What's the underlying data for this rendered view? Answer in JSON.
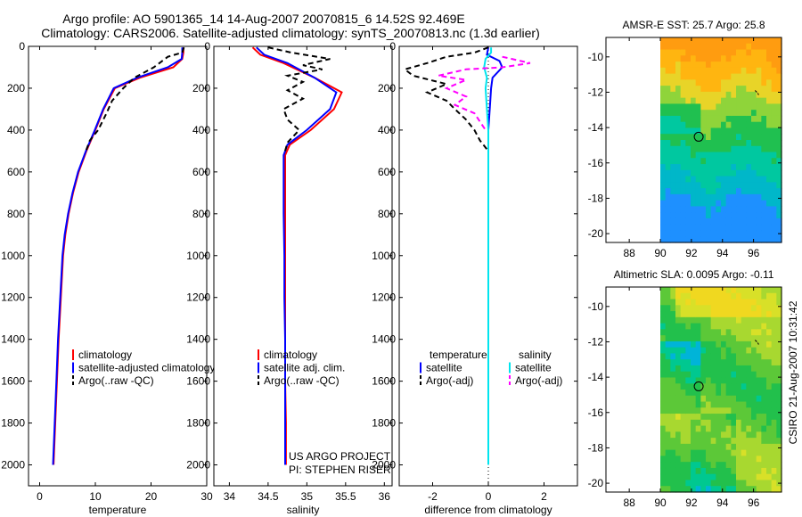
{
  "title_line1": "Argo profile: AO 5901365_14 14-Aug-2007 20070815_6 14.52S 92.469E",
  "title_line2": "Climatology: CARS2006. Satellite-adjusted climatology: synTS_20070813.nc (1.3d earlier)",
  "side_label": "CSIRO 21-Aug-2007 10:31:42",
  "chart_data": [
    {
      "id": "temperature",
      "type": "line",
      "xlabel": "temperature",
      "ylabel": "",
      "xlim": [
        -2,
        30
      ],
      "ylim": [
        2100,
        0
      ],
      "xticks": [
        0,
        10,
        20,
        30
      ],
      "yticks": [
        0,
        200,
        400,
        600,
        800,
        1000,
        1200,
        1400,
        1600,
        1800,
        2000
      ],
      "legend": [
        "climatology",
        "satellite-adjusted climatology",
        "Argo(..raw -QC)"
      ],
      "series": [
        {
          "name": "climatology",
          "color": "#ff0000",
          "dash": "",
          "points": [
            [
              25.8,
              5
            ],
            [
              25.8,
              30
            ],
            [
              25.6,
              60
            ],
            [
              24,
              100
            ],
            [
              18,
              150
            ],
            [
              13.5,
              200
            ],
            [
              11.5,
              300
            ],
            [
              10,
              400
            ],
            [
              8.4,
              500
            ],
            [
              7,
              600
            ],
            [
              6,
              700
            ],
            [
              5.2,
              800
            ],
            [
              4.6,
              900
            ],
            [
              4.2,
              1000
            ],
            [
              3.8,
              1200
            ],
            [
              3.4,
              1400
            ],
            [
              3.1,
              1600
            ],
            [
              2.8,
              1800
            ],
            [
              2.5,
              2000
            ]
          ]
        },
        {
          "name": "satellite-adjusted climatology",
          "color": "#0000ff",
          "dash": "",
          "points": [
            [
              25.6,
              5
            ],
            [
              25.6,
              30
            ],
            [
              25.5,
              60
            ],
            [
              23,
              100
            ],
            [
              17.5,
              150
            ],
            [
              13.3,
              200
            ],
            [
              11.4,
              300
            ],
            [
              9.9,
              400
            ],
            [
              8.3,
              500
            ],
            [
              6.9,
              600
            ],
            [
              5.9,
              700
            ],
            [
              5.1,
              800
            ],
            [
              4.5,
              900
            ],
            [
              4.1,
              1000
            ],
            [
              3.7,
              1200
            ],
            [
              3.3,
              1400
            ],
            [
              3,
              1600
            ],
            [
              2.7,
              1800
            ],
            [
              2.4,
              2000
            ]
          ]
        },
        {
          "name": "Argo(..raw -QC)",
          "color": "#000000",
          "dash": "6,4",
          "points": [
            [
              25.9,
              5
            ],
            [
              25.6,
              30
            ],
            [
              23,
              50
            ],
            [
              20.5,
              100
            ],
            [
              17,
              150
            ],
            [
              15,
              200
            ],
            [
              13,
              260
            ],
            [
              12,
              320
            ],
            [
              10.5,
              400
            ],
            [
              9,
              450
            ],
            [
              8.3,
              500
            ]
          ]
        }
      ]
    },
    {
      "id": "salinity",
      "type": "line",
      "xlabel": "salinity",
      "ylabel": "",
      "xlim": [
        33.8,
        36.1
      ],
      "ylim": [
        2100,
        0
      ],
      "xticks": [
        34,
        34.5,
        35,
        35.5,
        36
      ],
      "yticks": [
        0,
        200,
        400,
        600,
        800,
        1000,
        1200,
        1400,
        1600,
        1800,
        2000
      ],
      "legend": [
        "climatology",
        "satellite adj. clim.",
        "Argo(..raw -QC)"
      ],
      "annotations": [
        "US ARGO PROJECT",
        "PI: STEPHEN RISER"
      ],
      "series": [
        {
          "name": "climatology",
          "color": "#ff0000",
          "dash": "",
          "points": [
            [
              34.3,
              5
            ],
            [
              34.4,
              40
            ],
            [
              34.7,
              80
            ],
            [
              35.1,
              150
            ],
            [
              35.45,
              220
            ],
            [
              35.35,
              300
            ],
            [
              35.05,
              400
            ],
            [
              34.78,
              470
            ],
            [
              34.72,
              520
            ],
            [
              34.72,
              600
            ],
            [
              34.72,
              800
            ],
            [
              34.72,
              1000
            ],
            [
              34.72,
              1200
            ],
            [
              34.72,
              1400
            ],
            [
              34.72,
              1600
            ],
            [
              34.73,
              1800
            ],
            [
              34.73,
              2000
            ]
          ]
        },
        {
          "name": "satellite adj. clim.",
          "color": "#0000ff",
          "dash": "",
          "points": [
            [
              34.35,
              5
            ],
            [
              34.45,
              40
            ],
            [
              34.75,
              80
            ],
            [
              35.1,
              150
            ],
            [
              35.38,
              220
            ],
            [
              35.3,
              300
            ],
            [
              35.0,
              400
            ],
            [
              34.75,
              470
            ],
            [
              34.7,
              520
            ],
            [
              34.7,
              600
            ],
            [
              34.7,
              800
            ],
            [
              34.71,
              1000
            ],
            [
              34.71,
              1200
            ],
            [
              34.72,
              1400
            ],
            [
              34.72,
              1600
            ],
            [
              34.72,
              1800
            ],
            [
              34.72,
              2000
            ]
          ]
        },
        {
          "name": "Argo(..raw -QC)",
          "color": "#000000",
          "dash": "6,4",
          "points": [
            [
              34.5,
              5
            ],
            [
              34.8,
              30
            ],
            [
              35.3,
              60
            ],
            [
              34.95,
              90
            ],
            [
              35.2,
              110
            ],
            [
              34.75,
              140
            ],
            [
              34.95,
              170
            ],
            [
              34.75,
              210
            ],
            [
              34.95,
              250
            ],
            [
              34.7,
              300
            ],
            [
              34.75,
              350
            ],
            [
              34.9,
              400
            ],
            [
              34.75,
              460
            ],
            [
              34.72,
              500
            ]
          ]
        }
      ]
    },
    {
      "id": "difference",
      "type": "line",
      "xlabel": "difference from climatology",
      "ylabel": "",
      "xlim": [
        -3.2,
        3.2
      ],
      "ylim": [
        2100,
        0
      ],
      "xticks": [
        -2,
        0,
        2
      ],
      "yticks": [
        0,
        200,
        400,
        600,
        800,
        1000,
        1200,
        1400,
        1600,
        1800,
        2000
      ],
      "legend_headers": [
        "temperature",
        "salinity"
      ],
      "legend": [
        "satellite",
        "Argo(-adj)",
        "satellite",
        "Argo(-adj)"
      ],
      "series": [
        {
          "name": "temperature satellite",
          "color": "#0000ff",
          "dash": "",
          "points": [
            [
              0,
              5
            ],
            [
              -0.05,
              40
            ],
            [
              0.4,
              70
            ],
            [
              0.5,
              100
            ],
            [
              0.15,
              150
            ],
            [
              0.1,
              200
            ],
            [
              0.05,
              300
            ],
            [
              0,
              400
            ],
            [
              0,
              500
            ],
            [
              0,
              700
            ],
            [
              0,
              1000
            ],
            [
              0,
              1500
            ],
            [
              0,
              2000
            ]
          ]
        },
        {
          "name": "temperature Argo(-adj)",
          "color": "#000000",
          "dash": "6,4",
          "points": [
            [
              0,
              5
            ],
            [
              -0.5,
              30
            ],
            [
              -1.5,
              50
            ],
            [
              -2.2,
              80
            ],
            [
              -3,
              110
            ],
            [
              -2.7,
              140
            ],
            [
              -1.5,
              180
            ],
            [
              -2.2,
              220
            ],
            [
              -1.5,
              260
            ],
            [
              -1.2,
              300
            ],
            [
              -0.8,
              350
            ],
            [
              -0.5,
              400
            ],
            [
              -0.3,
              450
            ],
            [
              0,
              500
            ]
          ]
        },
        {
          "name": "salinity satellite",
          "color": "#00e5ee",
          "dash": "",
          "points": [
            [
              0.1,
              5
            ],
            [
              0.1,
              30
            ],
            [
              -0.1,
              60
            ],
            [
              -0.15,
              100
            ],
            [
              -0.05,
              150
            ],
            [
              -0.1,
              200
            ],
            [
              -0.05,
              300
            ],
            [
              0,
              400
            ],
            [
              0,
              600
            ],
            [
              0,
              1000
            ],
            [
              0,
              1500
            ],
            [
              0,
              2000
            ]
          ]
        },
        {
          "name": "salinity Argo(-adj)",
          "color": "#ff00ff",
          "dash": "6,4",
          "points": [
            [
              0.5,
              50
            ],
            [
              1.5,
              80
            ],
            [
              0.5,
              100
            ],
            [
              -0.8,
              110
            ],
            [
              -1.8,
              140
            ],
            [
              -0.8,
              160
            ],
            [
              -1.5,
              200
            ],
            [
              -0.8,
              240
            ],
            [
              -1.2,
              280
            ],
            [
              -0.5,
              320
            ],
            [
              -0.3,
              360
            ],
            [
              -0.1,
              400
            ]
          ]
        }
      ]
    },
    {
      "id": "sst_map",
      "type": "heatmap",
      "title": "AMSR-E SST: 25.7 Argo: 25.8",
      "xlim": [
        86.5,
        97.8
      ],
      "ylim": [
        -20.5,
        -8.9
      ],
      "xticks": [
        88,
        90,
        92,
        94,
        96
      ],
      "yticks": [
        -10,
        -12,
        -14,
        -16,
        -18,
        -20
      ],
      "data_lon_range": [
        90,
        97.8
      ],
      "float_position": [
        92.47,
        -14.52
      ]
    },
    {
      "id": "sla_map",
      "type": "heatmap",
      "title": "Altimetric SLA: 0.0095 Argo: -0.11",
      "xlim": [
        86.5,
        97.8
      ],
      "ylim": [
        -20.5,
        -8.9
      ],
      "xticks": [
        88,
        90,
        92,
        94,
        96
      ],
      "yticks": [
        -10,
        -12,
        -14,
        -16,
        -18,
        -20
      ],
      "data_lon_range": [
        90,
        97.8
      ],
      "float_position": [
        92.47,
        -14.52
      ]
    }
  ]
}
